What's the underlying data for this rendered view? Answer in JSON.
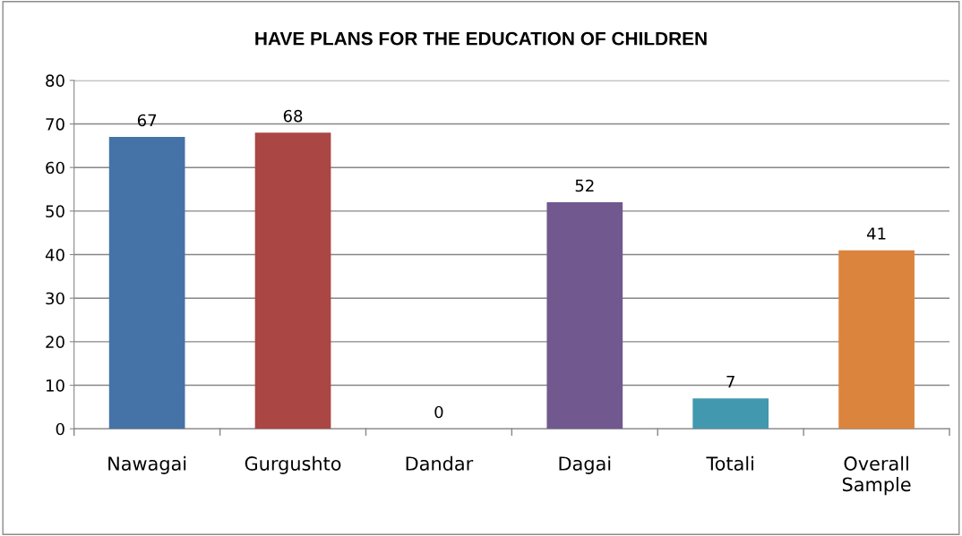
{
  "chart_data": {
    "type": "bar",
    "title": "HAVE PLANS FOR THE EDUCATION OF CHILDREN",
    "categories": [
      "Nawagai",
      "Gurgushto",
      "Dandar",
      "Dagai",
      "Totali",
      "Overall\nSample"
    ],
    "values": [
      67,
      68,
      0,
      52,
      7,
      41
    ],
    "colors": [
      "#4572a7",
      "#aa4643",
      "#89a54e",
      "#71588f",
      "#4198af",
      "#db843d"
    ],
    "ylim": [
      0,
      80
    ],
    "yticks": [
      0,
      10,
      20,
      30,
      40,
      50,
      60,
      70,
      80
    ],
    "grid": "y",
    "data_labels": true
  }
}
